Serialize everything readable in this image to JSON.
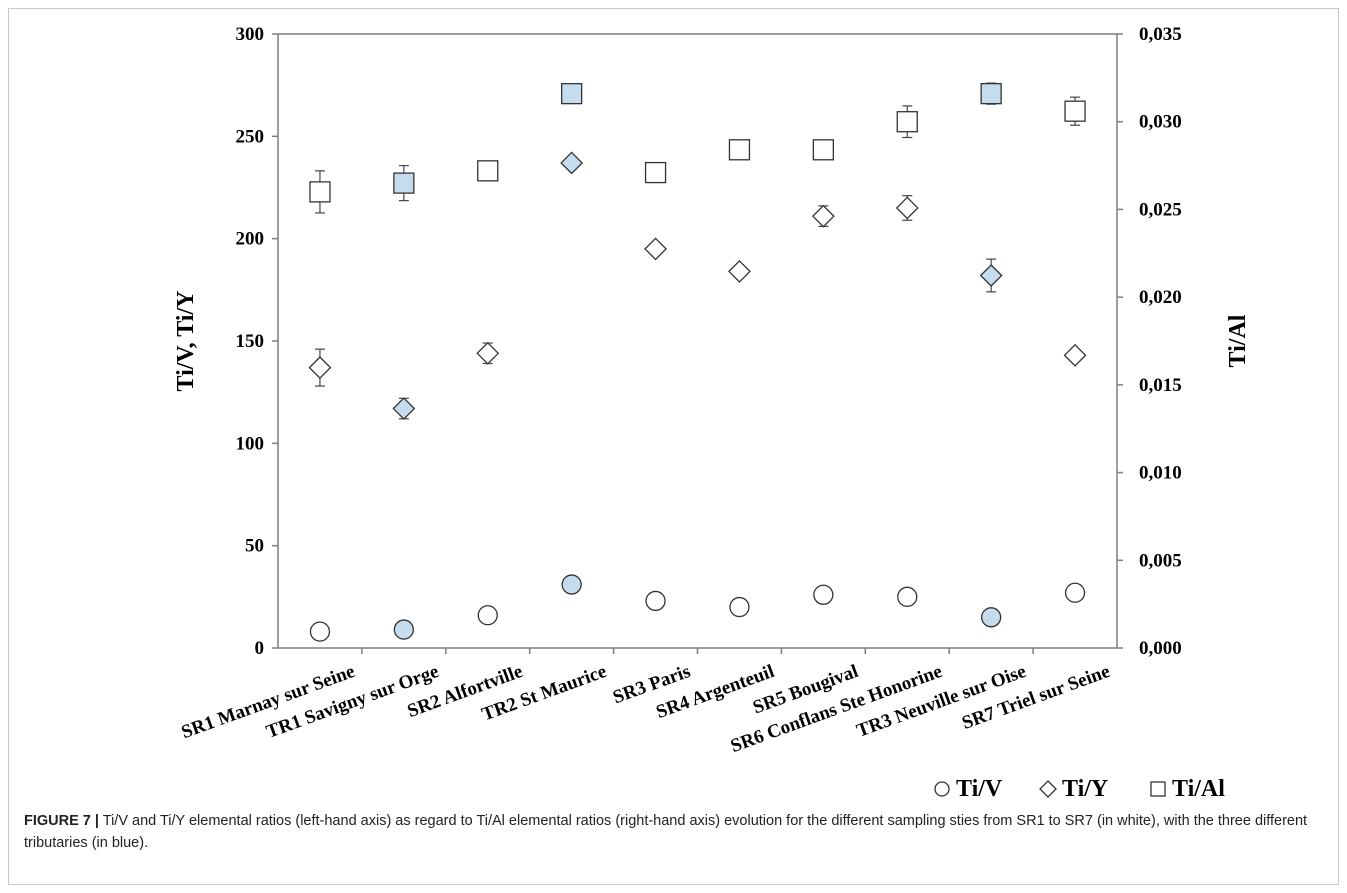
{
  "chart_data": {
    "type": "scatter",
    "categories": [
      "SR1 Marnay sur Seine",
      "TR1 Savigny sur Orge",
      "SR2 Alfortville",
      "TR2 St Maurice",
      "SR3 Paris",
      "SR4 Argenteuil",
      "SR5 Bougival",
      "SR6 Conflans Ste Honorine",
      "TR3 Neuville sur Oise",
      "SR7 Triel sur Seine"
    ],
    "ylabel": "Ti/V, Ti/Y",
    "ylabel2": "Ti/Al",
    "ylim": [
      0,
      300
    ],
    "yticks": [
      "0",
      "50",
      "100",
      "150",
      "200",
      "250",
      "300"
    ],
    "ylim2": [
      0,
      0.035
    ],
    "yticks2": [
      "0,000",
      "0,005",
      "0,010",
      "0,015",
      "0,020",
      "0,025",
      "0,030",
      "0,035"
    ],
    "highlight_fill": "#c5dcef",
    "default_fill": "#ffffff",
    "highlight_categories": [
      1,
      3,
      8
    ],
    "series": [
      {
        "name": "Ti/V",
        "marker": "circle",
        "axis": "left",
        "values": [
          8,
          9,
          16,
          31,
          23,
          20,
          26,
          25,
          15,
          27
        ],
        "errors": [
          null,
          null,
          null,
          null,
          null,
          null,
          null,
          null,
          null,
          null
        ]
      },
      {
        "name": "Ti/Y",
        "marker": "diamond",
        "axis": "left",
        "values": [
          137,
          117,
          144,
          237,
          195,
          184,
          211,
          215,
          182,
          143
        ],
        "errors": [
          9,
          5,
          5,
          null,
          null,
          null,
          5,
          6,
          8,
          null
        ]
      },
      {
        "name": "Ti/Al",
        "marker": "square",
        "axis": "right",
        "values": [
          0.026,
          0.0265,
          0.0272,
          0.0316,
          0.0271,
          0.0284,
          0.0284,
          0.03,
          0.0316,
          0.0306
        ],
        "errors": [
          0.0012,
          0.001,
          null,
          null,
          null,
          null,
          null,
          0.0009,
          0.0006,
          0.0008
        ]
      }
    ],
    "legend": [
      "○ Ti/V",
      "◇ Ti/Y",
      "□ Ti/Al"
    ],
    "legend_position": "bottom-right"
  },
  "caption": {
    "label": "FIGURE 7 |",
    "text": "Ti/V and Ti/Y elemental ratios (left-hand axis) as regard to Ti/Al elemental ratios (right-hand axis) evolution for the different sampling sties from SR1 to SR7 (in white), with the three different tributaries (in blue)."
  }
}
